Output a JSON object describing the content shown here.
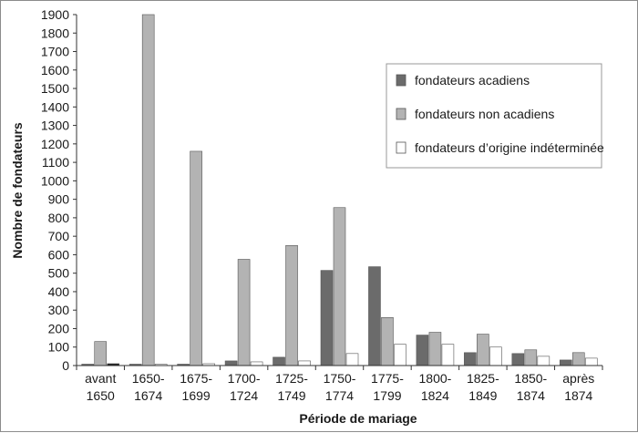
{
  "chart_data": {
    "type": "bar",
    "xlabel": "Période de mariage",
    "ylabel": "Nombre de fondateurs",
    "ylim": [
      0,
      1900
    ],
    "yticks": [
      0,
      100,
      200,
      300,
      400,
      500,
      600,
      700,
      800,
      900,
      1000,
      1100,
      1200,
      1300,
      1400,
      1500,
      1600,
      1700,
      1800,
      1900
    ],
    "grid": false,
    "legend_position": "top-right",
    "categories": [
      [
        "avant",
        "1650"
      ],
      [
        "1650-",
        "1674"
      ],
      [
        "1675-",
        "1699"
      ],
      [
        "1700-",
        "1724"
      ],
      [
        "1725-",
        "1749"
      ],
      [
        "1750-",
        "1774"
      ],
      [
        "1775-",
        "1799"
      ],
      [
        "1800-",
        "1824"
      ],
      [
        "1825-",
        "1849"
      ],
      [
        "1850-",
        "1874"
      ],
      [
        "après",
        "1874"
      ]
    ],
    "series": [
      {
        "name": "fondateurs acadiens",
        "color": "#6b6b6b",
        "values": [
          0,
          0,
          0,
          25,
          45,
          515,
          535,
          165,
          70,
          65,
          30
        ]
      },
      {
        "name": "fondateurs non acadiens",
        "color": "#b3b3b3",
        "values": [
          130,
          1900,
          1160,
          575,
          650,
          855,
          260,
          180,
          170,
          85,
          70
        ]
      },
      {
        "name": "fondateurs d’origine indéterminée",
        "color": "#ffffff",
        "values": [
          10,
          0,
          10,
          20,
          25,
          65,
          115,
          115,
          100,
          50,
          40
        ]
      }
    ],
    "series_overrides": [
      {
        "series": 2,
        "category": 0,
        "color": "#1a1a1a"
      }
    ]
  }
}
